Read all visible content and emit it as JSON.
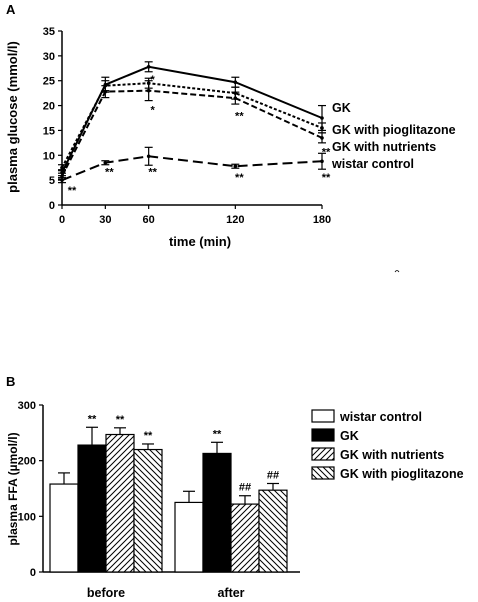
{
  "chart_data": [
    {
      "panel": "A",
      "type": "line",
      "ylabel": "plasma glucose (mmol/l)",
      "xlabel": "time (min)",
      "x": [
        0,
        30,
        60,
        120,
        180
      ],
      "x_ticks": [
        "0",
        "30",
        "60",
        "120",
        "180"
      ],
      "ylim": [
        0,
        35
      ],
      "y_ticks": [
        "0",
        "5",
        "10",
        "15",
        "20",
        "25",
        "30",
        "35"
      ],
      "grid": false,
      "series": [
        {
          "name": "GK",
          "style": "solid",
          "values": [
            6.5,
            24.2,
            27.8,
            24.7,
            17.5
          ],
          "errors": [
            0.6,
            1.5,
            1.0,
            1.0,
            2.5
          ]
        },
        {
          "name": "GK with pioglitazone",
          "style": "dotted",
          "values": [
            7.5,
            24.0,
            24.5,
            22.5,
            15.5
          ],
          "errors": [
            0.6,
            1.0,
            1.0,
            1.2,
            1.0
          ]
        },
        {
          "name": "GK with nutrients",
          "style": "dashed",
          "values": [
            5.8,
            22.8,
            23.0,
            21.5,
            13.5
          ],
          "errors": [
            0.6,
            1.2,
            2.0,
            1.2,
            1.0
          ]
        },
        {
          "name": "wistar control",
          "style": "long-dash",
          "values": [
            5.0,
            8.5,
            9.8,
            7.8,
            8.8
          ],
          "errors": [
            0.5,
            0.4,
            1.8,
            0.4,
            1.6
          ]
        }
      ],
      "annotations": [
        {
          "text": "**",
          "x": 0,
          "y": 3.0
        },
        {
          "text": "**",
          "x": 30,
          "y": 6.7
        },
        {
          "text": "*",
          "x": 60,
          "y": 19.2
        },
        {
          "text": "*",
          "x": 60,
          "y": 25.3
        },
        {
          "text": "**",
          "x": 60,
          "y": 6.7
        },
        {
          "text": "**",
          "x": 120,
          "y": 18.0
        },
        {
          "text": "**",
          "x": 120,
          "y": 5.6
        },
        {
          "text": "**",
          "x": 180,
          "y": 10.8
        },
        {
          "text": "**",
          "x": 180,
          "y": 5.6
        }
      ]
    },
    {
      "panel": "B",
      "type": "bar",
      "ylabel": "plasma FFA (µmol/l)",
      "categories": [
        "before",
        "after"
      ],
      "ylim": [
        0,
        300
      ],
      "y_ticks": [
        "0",
        "100",
        "200",
        "300"
      ],
      "grid": false,
      "legend_position": "right",
      "series": [
        {
          "name": "wistar control",
          "fill": "white",
          "values": [
            158,
            125
          ],
          "errors": [
            20,
            20
          ],
          "marks": [
            "",
            ""
          ]
        },
        {
          "name": "GK",
          "fill": "black",
          "values": [
            228,
            213
          ],
          "errors": [
            32,
            20
          ],
          "marks": [
            "**",
            "**"
          ]
        },
        {
          "name": "GK with nutrients",
          "fill": "hatch-forward",
          "values": [
            247,
            122
          ],
          "errors": [
            12,
            15
          ],
          "marks": [
            "**",
            "##"
          ]
        },
        {
          "name": "GK with pioglitazone",
          "fill": "hatch-back",
          "values": [
            220,
            147
          ],
          "errors": [
            10,
            12
          ],
          "marks": [
            "**",
            "##"
          ]
        }
      ]
    }
  ]
}
